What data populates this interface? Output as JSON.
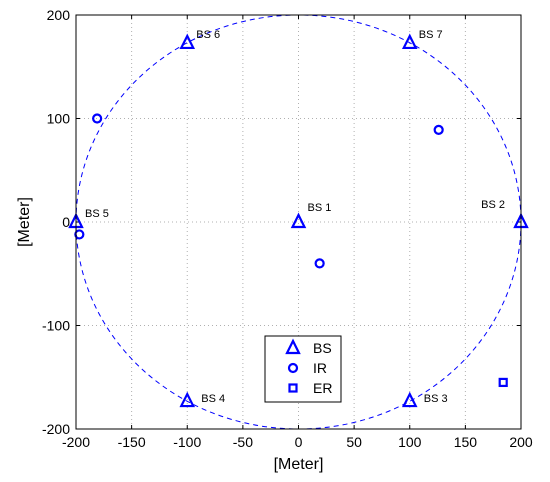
{
  "chart_data": {
    "type": "scatter",
    "xlabel": "[Meter]",
    "ylabel": "[Meter]",
    "xlim": [
      -200,
      200
    ],
    "ylim": [
      -200,
      200
    ],
    "xticks": [
      -200,
      -150,
      -100,
      -50,
      0,
      50,
      100,
      150,
      200
    ],
    "yticks": [
      -200,
      -100,
      0,
      100,
      200
    ],
    "grid": true,
    "legend_position": "bottom-center",
    "colors": {
      "marker": "#0000ff",
      "circle": "#0000ff",
      "axis": "#000000",
      "grid": "#b0b0b0"
    },
    "boundary_circle": {
      "center": [
        0,
        0
      ],
      "radius": 200,
      "style": "dashed"
    },
    "series": [
      {
        "name": "BS",
        "marker": "triangle",
        "points": [
          {
            "x": 0,
            "y": 0,
            "label": "BS 1"
          },
          {
            "x": 200,
            "y": 0,
            "label": "BS 2"
          },
          {
            "x": 100,
            "y": -173,
            "label": "BS 3"
          },
          {
            "x": -100,
            "y": -173,
            "label": "BS 4"
          },
          {
            "x": -200,
            "y": 0,
            "label": "BS 5"
          },
          {
            "x": -100,
            "y": 173,
            "label": "BS 6"
          },
          {
            "x": 100,
            "y": 173,
            "label": "BS 7"
          }
        ]
      },
      {
        "name": "IR",
        "marker": "circle",
        "points": [
          {
            "x": -181,
            "y": 100
          },
          {
            "x": 126,
            "y": 89
          },
          {
            "x": 19,
            "y": -40
          },
          {
            "x": -197,
            "y": -12
          }
        ]
      },
      {
        "name": "ER",
        "marker": "square",
        "points": [
          {
            "x": 184,
            "y": -155
          }
        ]
      }
    ]
  }
}
